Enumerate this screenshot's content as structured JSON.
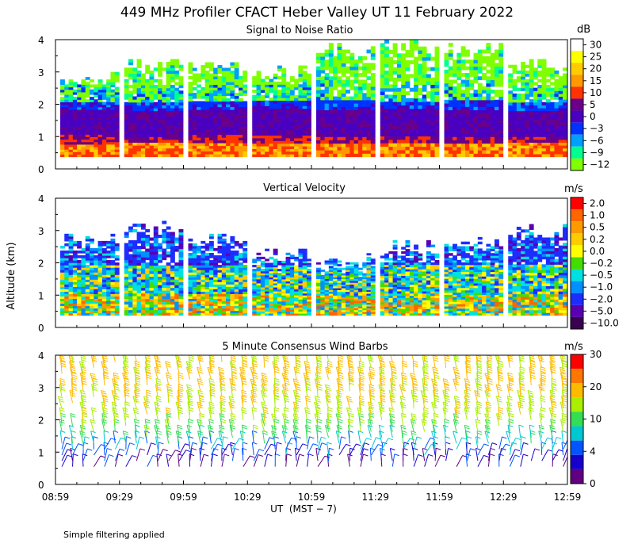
{
  "title": "449 MHz Profiler CFACT Heber Valley UT 11 February 2022",
  "footer_note": "Simple filtering applied",
  "chart_data": [
    {
      "type": "heatmap",
      "title": "Signal to Noise Ratio",
      "ylabel": "",
      "ylim": [
        0,
        4
      ],
      "yticks": [
        "0",
        "1",
        "2",
        "3",
        "4"
      ],
      "unit": "dB",
      "colorbar_labels": [
        "30",
        "25",
        "20",
        "15",
        "10",
        "5",
        "0",
        "−3",
        "−6",
        "−9",
        "−12"
      ],
      "colorbar_colors": [
        "#ffffff",
        "#ffff00",
        "#ffcc00",
        "#ff9900",
        "#ff3300",
        "#6a008a",
        "#4a00c0",
        "#0032ff",
        "#00a0ff",
        "#00ff90",
        "#80ff00"
      ],
      "blocks": [
        {
          "start": "08:59",
          "end": "09:28",
          "top_km": 3.0
        },
        {
          "start": "09:29",
          "end": "09:58",
          "top_km": 3.4
        },
        {
          "start": "09:59",
          "end": "10:28",
          "top_km": 3.3
        },
        {
          "start": "10:29",
          "end": "10:58",
          "top_km": 3.2
        },
        {
          "start": "10:59",
          "end": "11:28",
          "top_km": 3.9
        },
        {
          "start": "11:29",
          "end": "11:58",
          "top_km": 4.0
        },
        {
          "start": "11:59",
          "end": "12:28",
          "top_km": 3.9
        },
        {
          "start": "12:29",
          "end": "12:58",
          "top_km": 3.4
        }
      ]
    },
    {
      "type": "heatmap",
      "title": "Vertical Velocity",
      "ylabel": "Altitude (km)",
      "ylim": [
        0,
        4
      ],
      "yticks": [
        "0",
        "1",
        "2",
        "3",
        "4"
      ],
      "unit": "m/s",
      "colorbar_labels": [
        "2.0",
        "1.0",
        "0.5",
        "0.2",
        "0.0",
        "−0.2",
        "−0.5",
        "−1.0",
        "−2.0",
        "−5.0",
        "−10.0"
      ],
      "colorbar_colors": [
        "#ff0000",
        "#ff6600",
        "#ff9900",
        "#ffcc00",
        "#ffff00",
        "#44dd00",
        "#00e0e0",
        "#0090ff",
        "#1e2dff",
        "#5a00b0",
        "#3a0050"
      ],
      "blocks": [
        {
          "start": "08:59",
          "end": "09:28",
          "top_km": 2.9
        },
        {
          "start": "09:29",
          "end": "09:58",
          "top_km": 3.3
        },
        {
          "start": "09:59",
          "end": "10:28",
          "top_km": 2.9
        },
        {
          "start": "10:29",
          "end": "10:58",
          "top_km": 2.5
        },
        {
          "start": "10:59",
          "end": "11:28",
          "top_km": 2.3
        },
        {
          "start": "11:29",
          "end": "11:58",
          "top_km": 2.7
        },
        {
          "start": "11:59",
          "end": "12:28",
          "top_km": 2.8
        },
        {
          "start": "12:29",
          "end": "12:58",
          "top_km": 3.2
        }
      ]
    },
    {
      "type": "scatter",
      "title": "5 Minute Consensus Wind Barbs",
      "ylabel": "",
      "xlabel": "UT  (MST − 7)",
      "ylim": [
        0,
        4
      ],
      "yticks": [
        "0",
        "1",
        "2",
        "3",
        "4"
      ],
      "xticks": [
        "08:59",
        "09:29",
        "09:59",
        "10:29",
        "10:59",
        "11:29",
        "11:59",
        "12:29",
        "12:59"
      ],
      "unit": "m/s",
      "colorbar_labels": [
        "30",
        "20",
        "10",
        "4",
        "0"
      ],
      "colorbar_colors": [
        "#ff0000",
        "#ff7700",
        "#ffbb00",
        "#aaee00",
        "#33dd55",
        "#00c8d0",
        "#0055ff",
        "#1800cc",
        "#600080"
      ],
      "speed_profile": [
        {
          "alt_km": 0.6,
          "speed_ms": 2
        },
        {
          "alt_km": 1.0,
          "speed_ms": 6
        },
        {
          "alt_km": 1.5,
          "speed_ms": 12
        },
        {
          "alt_km": 2.0,
          "speed_ms": 18
        },
        {
          "alt_km": 3.0,
          "speed_ms": 22
        },
        {
          "alt_km": 3.8,
          "speed_ms": 21
        }
      ]
    }
  ]
}
